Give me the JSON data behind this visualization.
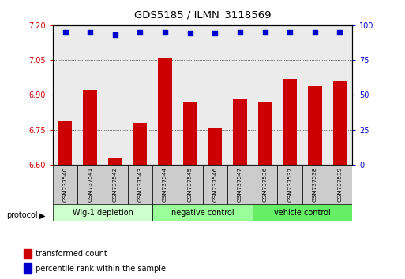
{
  "title": "GDS5185 / ILMN_3118569",
  "samples": [
    "GSM737540",
    "GSM737541",
    "GSM737542",
    "GSM737543",
    "GSM737544",
    "GSM737545",
    "GSM737546",
    "GSM737547",
    "GSM737536",
    "GSM737537",
    "GSM737538",
    "GSM737539"
  ],
  "red_values": [
    6.79,
    6.92,
    6.63,
    6.78,
    7.06,
    6.87,
    6.76,
    6.88,
    6.87,
    6.97,
    6.94,
    6.96
  ],
  "blue_values": [
    95,
    95,
    93,
    95,
    95,
    94,
    94,
    95,
    95,
    95,
    95,
    95
  ],
  "ylim_left": [
    6.6,
    7.2
  ],
  "ylim_right": [
    0,
    100
  ],
  "yticks_left": [
    6.6,
    6.75,
    6.9,
    7.05,
    7.2
  ],
  "yticks_right": [
    0,
    25,
    50,
    75,
    100
  ],
  "groups": [
    {
      "label": "Wig-1 depletion",
      "start": 0,
      "end": 3,
      "color": "#ccffcc"
    },
    {
      "label": "negative control",
      "start": 4,
      "end": 7,
      "color": "#99ff99"
    },
    {
      "label": "vehicle control",
      "start": 8,
      "end": 11,
      "color": "#66ee66"
    }
  ],
  "bar_color": "#cc0000",
  "dot_color": "#0000cc",
  "bg_color": "#ebebeb",
  "grid_color": "#000000",
  "left_tick_color": "#cc0000",
  "right_tick_color": "#0000cc",
  "baseline": 6.6,
  "legend_items": [
    {
      "color": "#cc0000",
      "label": "transformed count"
    },
    {
      "color": "#0000cc",
      "label": "percentile rank within the sample"
    }
  ]
}
